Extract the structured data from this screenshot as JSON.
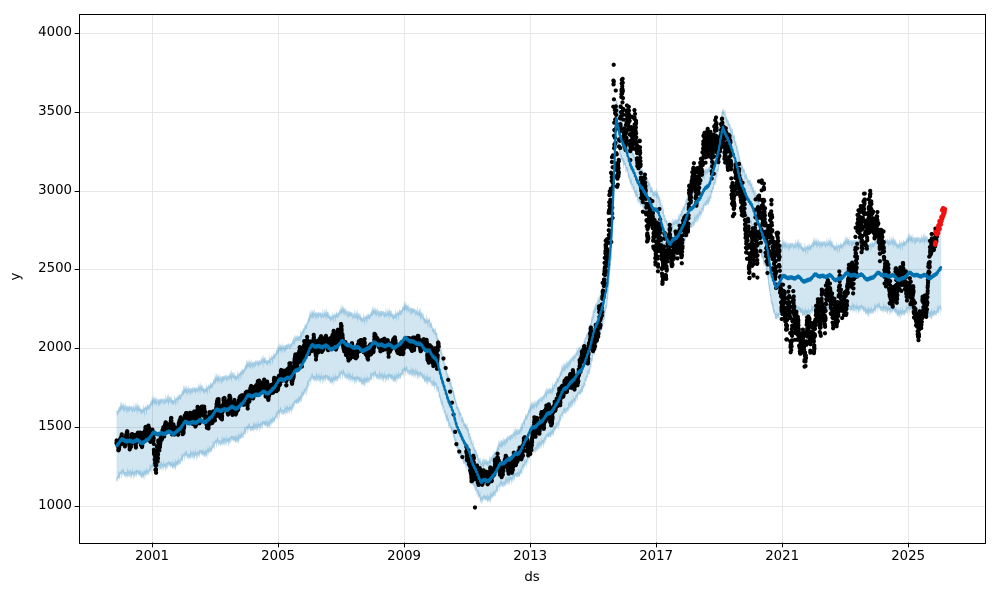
{
  "chart_data": {
    "type": "scatter",
    "title": "",
    "xlabel": "ds",
    "ylabel": "y",
    "x_ticks": [
      2001,
      2005,
      2009,
      2013,
      2017,
      2021,
      2025
    ],
    "y_ticks": [
      1000,
      1500,
      2000,
      2500,
      3000,
      3500,
      4000
    ],
    "xlim": [
      1998.68,
      2027.44
    ],
    "ylim": [
      765,
      4120
    ],
    "grid": true,
    "legend": "none",
    "colors": {
      "actuals": "#000000",
      "forecast_line": "#0072b2",
      "uncertainty_fill": "rgba(0,114,178,0.18)",
      "uncertainty_edge": "rgba(0,114,178,0.30)",
      "recent_points": "#f01010",
      "grid": "#e7e7e7",
      "spine": "#000000"
    },
    "series_notes": {
      "black_dots": "observed values y (daily)",
      "blue_line": "forecast yhat",
      "band": "yhat uncertainty interval",
      "red_dots": "most recent observations"
    },
    "forecast": [
      [
        1999.87,
        1390,
        210
      ],
      [
        2000.5,
        1415,
        205
      ],
      [
        2001,
        1435,
        205
      ],
      [
        2001.5,
        1468,
        205
      ],
      [
        2002,
        1503,
        205
      ],
      [
        2002.5,
        1540,
        205
      ],
      [
        2003,
        1580,
        200
      ],
      [
        2003.5,
        1624,
        200
      ],
      [
        2004,
        1670,
        200
      ],
      [
        2004.5,
        1719,
        200
      ],
      [
        2005,
        1770,
        200
      ],
      [
        2005.4,
        1818,
        200
      ],
      [
        2005.8,
        1925,
        200
      ],
      [
        2006.1,
        2000,
        200
      ],
      [
        2006.5,
        2015,
        200
      ],
      [
        2007,
        2020,
        200
      ],
      [
        2007.5,
        2005,
        200
      ],
      [
        2008,
        2010,
        200
      ],
      [
        2008.5,
        2020,
        200
      ],
      [
        2009,
        2040,
        200
      ],
      [
        2009.4,
        2035,
        195
      ],
      [
        2009.8,
        2000,
        185
      ],
      [
        2010.05,
        1890,
        160
      ],
      [
        2010.3,
        1730,
        145
      ],
      [
        2010.6,
        1570,
        130
      ],
      [
        2010.9,
        1410,
        120
      ],
      [
        2011.15,
        1270,
        115
      ],
      [
        2011.45,
        1152,
        110
      ],
      [
        2011.7,
        1185,
        118
      ],
      [
        2012,
        1230,
        126
      ],
      [
        2012.3,
        1290,
        132
      ],
      [
        2012.6,
        1340,
        136
      ],
      [
        2012.85,
        1425,
        140
      ],
      [
        2013.1,
        1478,
        140
      ],
      [
        2013.4,
        1545,
        140
      ],
      [
        2013.7,
        1625,
        140
      ],
      [
        2014,
        1695,
        140
      ],
      [
        2014.3,
        1780,
        138
      ],
      [
        2014.6,
        1865,
        135
      ],
      [
        2014.9,
        2010,
        128
      ],
      [
        2015.1,
        2125,
        120
      ],
      [
        2015.3,
        2260,
        112
      ],
      [
        2015.45,
        2410,
        105
      ],
      [
        2015.58,
        2700,
        100
      ],
      [
        2015.66,
        3100,
        105
      ],
      [
        2015.73,
        3480,
        112
      ],
      [
        2015.85,
        3360,
        112
      ],
      [
        2016,
        3255,
        108
      ],
      [
        2016.2,
        3148,
        104
      ],
      [
        2016.5,
        3025,
        102
      ],
      [
        2016.7,
        2995,
        102
      ],
      [
        2016.9,
        2888,
        102
      ],
      [
        2017.1,
        2828,
        102
      ],
      [
        2017.3,
        2702,
        102
      ],
      [
        2017.45,
        2662,
        102
      ],
      [
        2017.75,
        2752,
        102
      ],
      [
        2018.05,
        2848,
        102
      ],
      [
        2018.35,
        2940,
        102
      ],
      [
        2018.7,
        3068,
        102
      ],
      [
        2019,
        3250,
        104
      ],
      [
        2019.12,
        3385,
        106
      ],
      [
        2019.4,
        3270,
        110
      ],
      [
        2019.7,
        3068,
        116
      ],
      [
        2020,
        2898,
        122
      ],
      [
        2020.3,
        2760,
        134
      ],
      [
        2020.5,
        2660,
        150
      ],
      [
        2020.65,
        2500,
        170
      ],
      [
        2020.8,
        2400,
        190
      ],
      [
        2021,
        2430,
        202
      ],
      [
        2021.5,
        2452,
        205
      ],
      [
        2022,
        2440,
        205
      ],
      [
        2022.5,
        2462,
        205
      ],
      [
        2023,
        2448,
        205
      ],
      [
        2023.5,
        2466,
        208
      ],
      [
        2024,
        2452,
        210
      ],
      [
        2024.5,
        2462,
        214
      ],
      [
        2025,
        2452,
        220
      ],
      [
        2025.5,
        2462,
        230
      ],
      [
        2026.05,
        2482,
        248
      ]
    ],
    "actuals": [
      [
        1999.87,
        1400,
        55
      ],
      [
        2000.5,
        1432,
        58
      ],
      [
        2001,
        1435,
        70
      ],
      [
        2001.12,
        1330,
        115
      ],
      [
        2001.3,
        1465,
        62
      ],
      [
        2001.6,
        1487,
        62
      ],
      [
        2002,
        1522,
        66
      ],
      [
        2002.4,
        1590,
        82
      ],
      [
        2002.7,
        1572,
        70
      ],
      [
        2003,
        1592,
        62
      ],
      [
        2003.5,
        1645,
        62
      ],
      [
        2004,
        1688,
        66
      ],
      [
        2004.5,
        1737,
        70
      ],
      [
        2005,
        1788,
        72
      ],
      [
        2005.5,
        1882,
        82
      ],
      [
        2005.9,
        2035,
        92
      ],
      [
        2006.2,
        2002,
        76
      ],
      [
        2006.6,
        2012,
        72
      ],
      [
        2006.9,
        2062,
        90
      ],
      [
        2007.2,
        1992,
        66
      ],
      [
        2007.6,
        1987,
        62
      ],
      [
        2008,
        2002,
        62
      ],
      [
        2008.5,
        2017,
        62
      ],
      [
        2009,
        2032,
        62
      ],
      [
        2009.4,
        2047,
        62
      ],
      [
        2009.7,
        2005,
        72
      ],
      [
        2010.05,
        1945,
        95
      ],
      [
        2010.98,
        1300,
        85
      ],
      [
        2011.2,
        1235,
        82
      ],
      [
        2011.5,
        1168,
        75
      ],
      [
        2011.8,
        1212,
        82
      ],
      [
        2012.1,
        1268,
        82
      ],
      [
        2012.4,
        1288,
        72
      ],
      [
        2012.7,
        1322,
        76
      ],
      [
        2013,
        1422,
        82
      ],
      [
        2013.3,
        1512,
        82
      ],
      [
        2013.6,
        1592,
        82
      ],
      [
        2013.9,
        1658,
        82
      ],
      [
        2014.2,
        1762,
        82
      ],
      [
        2014.5,
        1842,
        86
      ],
      [
        2014.8,
        1935,
        96
      ],
      [
        2015.05,
        2085,
        122
      ],
      [
        2015.25,
        2305,
        165
      ],
      [
        2015.45,
        2560,
        260
      ],
      [
        2015.6,
        3250,
        690
      ],
      [
        2015.75,
        3430,
        390
      ],
      [
        2015.9,
        3430,
        235
      ],
      [
        2016.1,
        3395,
        225
      ],
      [
        2016.3,
        3285,
        245
      ],
      [
        2016.5,
        3105,
        205
      ],
      [
        2016.7,
        2935,
        185
      ],
      [
        2016.9,
        2760,
        255
      ],
      [
        2017.1,
        2680,
        255
      ],
      [
        2017.3,
        2585,
        225
      ],
      [
        2017.5,
        2555,
        205
      ],
      [
        2017.7,
        2645,
        155
      ],
      [
        2017.9,
        2782,
        152
      ],
      [
        2018.1,
        2922,
        152
      ],
      [
        2018.3,
        3022,
        152
      ],
      [
        2018.5,
        3122,
        172
      ],
      [
        2018.7,
        3285,
        225
      ],
      [
        2018.9,
        3525,
        285
      ],
      [
        2019.05,
        3425,
        225
      ],
      [
        2019.25,
        3205,
        205
      ],
      [
        2019.45,
        3025,
        225
      ],
      [
        2019.65,
        2952,
        192
      ],
      [
        2019.85,
        2850,
        290
      ],
      [
        2020.1,
        2680,
        300
      ],
      [
        2020.3,
        2650,
        330
      ],
      [
        2020.5,
        2650,
        360
      ],
      [
        2020.75,
        2500,
        300
      ],
      [
        2021.05,
        2280,
        240
      ],
      [
        2021.3,
        2190,
        185
      ],
      [
        2021.55,
        2140,
        170
      ],
      [
        2021.8,
        2090,
        165
      ],
      [
        2022.05,
        2180,
        182
      ],
      [
        2022.3,
        2262,
        182
      ],
      [
        2022.55,
        2302,
        182
      ],
      [
        2022.8,
        2260,
        210
      ],
      [
        2023.05,
        2330,
        190
      ],
      [
        2023.3,
        2480,
        220
      ],
      [
        2023.55,
        2720,
        280
      ],
      [
        2023.72,
        2880,
        240
      ],
      [
        2023.9,
        2790,
        140
      ],
      [
        2024.15,
        2720,
        160
      ],
      [
        2024.35,
        2450,
        170
      ],
      [
        2024.6,
        2380,
        150
      ],
      [
        2024.85,
        2430,
        140
      ],
      [
        2025.1,
        2330,
        160
      ],
      [
        2025.3,
        2180,
        140
      ],
      [
        2025.5,
        2300,
        150
      ],
      [
        2025.7,
        2520,
        150
      ],
      [
        2025.92,
        2740,
        110
      ]
    ],
    "actuals_gap": [
      2010.1,
      2010.97
    ],
    "isolated_points": [
      [
        2010.25,
        1935
      ],
      [
        2010.32,
        1875
      ],
      [
        2010.4,
        1800
      ],
      [
        2010.46,
        1725
      ],
      [
        2010.52,
        1655
      ],
      [
        2010.57,
        1580
      ],
      [
        2010.62,
        1470
      ],
      [
        2010.66,
        1392
      ],
      [
        2010.75,
        1345
      ],
      [
        2010.85,
        1310
      ],
      [
        2011.25,
        990
      ]
    ],
    "red_points": {
      "t_start": 2025.86,
      "t_end": 2026.16,
      "v_start": 2690,
      "v_end": 2895,
      "jitter": 32,
      "count": 26
    }
  }
}
